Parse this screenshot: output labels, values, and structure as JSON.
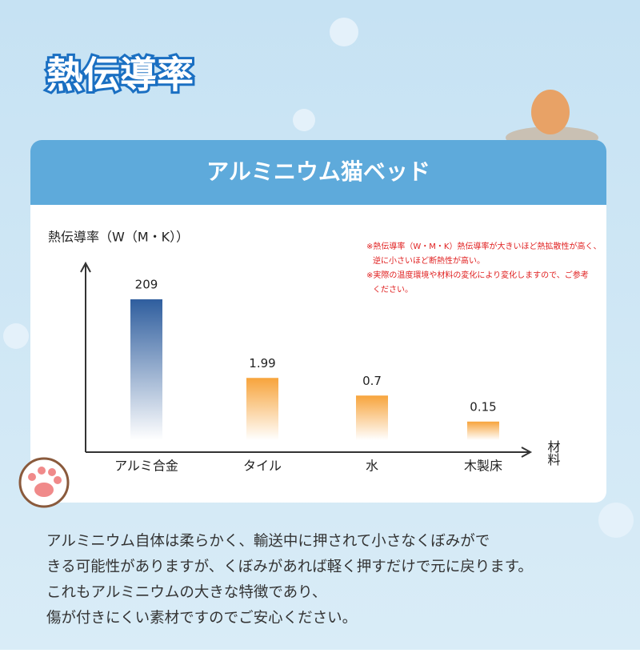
{
  "header": {
    "title": "熱伝導率"
  },
  "chart_data": {
    "type": "bar",
    "title": "アルミニウム猫ベッド",
    "y_label": "熱伝導率（W（M・K））",
    "x_label": "材料",
    "notes": [
      "※熱伝導率（W・M・K）熱伝導率が大きいほど熱拡散性が高く、",
      "逆に小さいほど断熱性が高い。",
      "※実際の温度環境や材料の変化により変化しますので、ご参考",
      "ください。"
    ],
    "categories": [
      "アルミ合金",
      "タイル",
      "水",
      "木製床"
    ],
    "values": [
      209,
      1.99,
      0.7,
      0.15
    ],
    "colors": [
      "#2f5e9e",
      "#f7a43c",
      "#f7a43c",
      "#f7a43c"
    ],
    "ylim": [
      0.05,
      230
    ],
    "log_scale": true
  },
  "body": {
    "lines": [
      "アルミニウム自体は柔らかく、輸送中に押されて小さなくぼみがで",
      "きる可能性がありますが、くぼみがあれば軽く押すだけで元に戻ります。",
      "これもアルミニウムの大きな特徴であり、",
      "傷が付きにくい素材ですのでご安心ください。"
    ]
  }
}
